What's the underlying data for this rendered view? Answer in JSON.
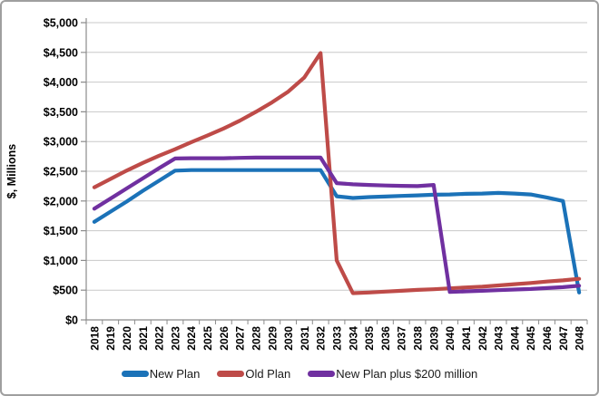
{
  "chart_data": {
    "type": "line",
    "title": "",
    "xlabel": "",
    "ylabel": "$, Millions",
    "ylim": [
      0,
      5000
    ],
    "ytick_step": 500,
    "ytick_labels": [
      "$0",
      "$500",
      "$1,000",
      "$1,500",
      "$2,000",
      "$2,500",
      "$3,000",
      "$3,500",
      "$4,000",
      "$4,500",
      "$5,000"
    ],
    "x": [
      "2018",
      "2019",
      "2020",
      "2021",
      "2022",
      "2023",
      "2024",
      "2025",
      "2026",
      "2027",
      "2028",
      "2029",
      "2030",
      "2031",
      "2032",
      "2033",
      "2034",
      "2035",
      "2036",
      "2037",
      "2038",
      "2039",
      "2040",
      "2041",
      "2042",
      "2043",
      "2044",
      "2045",
      "2046",
      "2047",
      "2048"
    ],
    "grid": true,
    "legend_position": "bottom",
    "series": [
      {
        "name": "New Plan",
        "color": "#1b72b8",
        "values": [
          1650,
          1820,
          1990,
          2170,
          2340,
          2510,
          2520,
          2520,
          2520,
          2520,
          2520,
          2520,
          2520,
          2520,
          2520,
          2080,
          2050,
          2065,
          2075,
          2085,
          2095,
          2105,
          2110,
          2120,
          2125,
          2135,
          2125,
          2110,
          2060,
          2000,
          460
        ]
      },
      {
        "name": "Old Plan",
        "color": "#be4b48",
        "values": [
          2230,
          2370,
          2510,
          2640,
          2760,
          2870,
          2990,
          3100,
          3220,
          3350,
          3500,
          3660,
          3840,
          4080,
          4490,
          1000,
          450,
          460,
          475,
          490,
          505,
          515,
          530,
          545,
          560,
          580,
          600,
          620,
          645,
          665,
          690
        ]
      },
      {
        "name": "New Plan plus $200 million",
        "color": "#7030a0",
        "values": [
          1870,
          2040,
          2210,
          2380,
          2550,
          2715,
          2720,
          2720,
          2720,
          2725,
          2730,
          2730,
          2730,
          2730,
          2730,
          2300,
          2280,
          2270,
          2260,
          2255,
          2250,
          2270,
          470,
          480,
          490,
          500,
          510,
          520,
          535,
          550,
          575
        ]
      }
    ],
    "colors": {
      "gridline": "#c8c8c8",
      "axis": "#8c8c8c",
      "tick": "#8c8c8c",
      "label_text": "#000000"
    }
  }
}
